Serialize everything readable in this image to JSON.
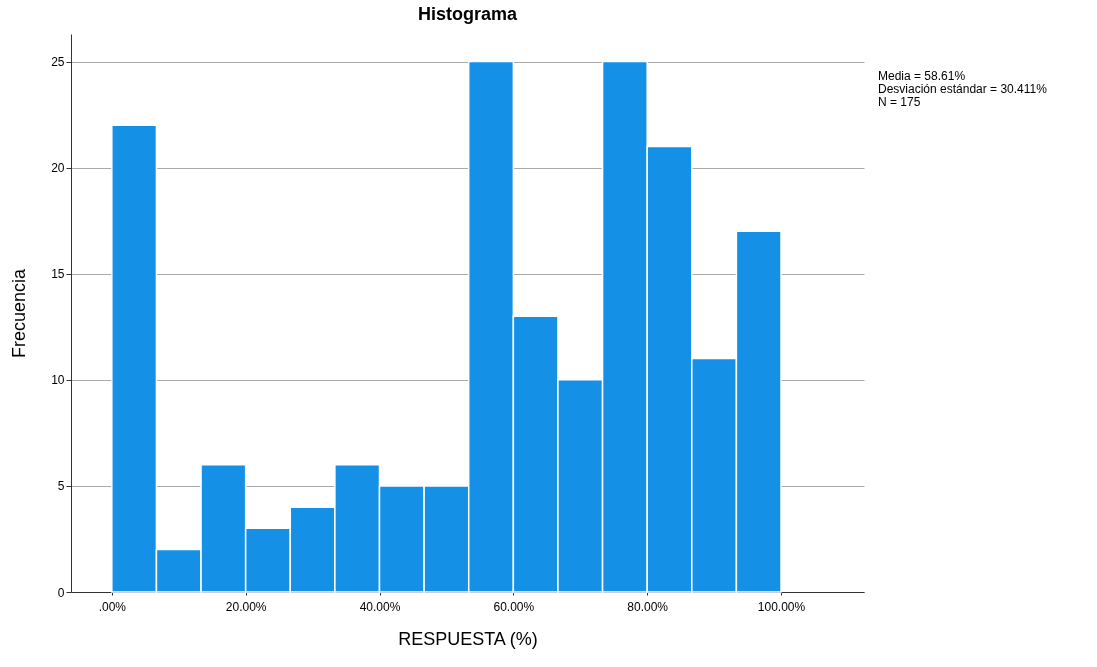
{
  "chart_data": {
    "type": "histogram",
    "title": "Histograma",
    "xlabel": "RESPUESTA (%)",
    "ylabel": "Frecuencia",
    "bins": [
      0,
      6.667,
      13.333,
      20,
      26.667,
      33.333,
      40,
      46.667,
      53.333,
      60,
      66.667,
      73.333,
      80,
      86.667,
      93.333,
      100
    ],
    "values": [
      22,
      2,
      6,
      3,
      4,
      6,
      5,
      5,
      25,
      13,
      10,
      25,
      21,
      11,
      17
    ],
    "color": "#1490e6",
    "xlim": [
      -6.1,
      112.4
    ],
    "xticks": [
      {
        "value": 0,
        "label": ".00%"
      },
      {
        "value": 20,
        "label": "20.00%"
      },
      {
        "value": 40,
        "label": "40.00%"
      },
      {
        "value": 60,
        "label": "60.00%"
      },
      {
        "value": 80,
        "label": "80.00%"
      },
      {
        "value": 100,
        "label": "100.00%"
      }
    ],
    "ylim": [
      0,
      26.3
    ],
    "yticks": [
      0,
      5,
      10,
      15,
      20,
      25
    ],
    "grid": "y",
    "annotations": [
      "Media = 58.61%",
      "Desviación estándar = 30.411%",
      "N = 175"
    ]
  }
}
